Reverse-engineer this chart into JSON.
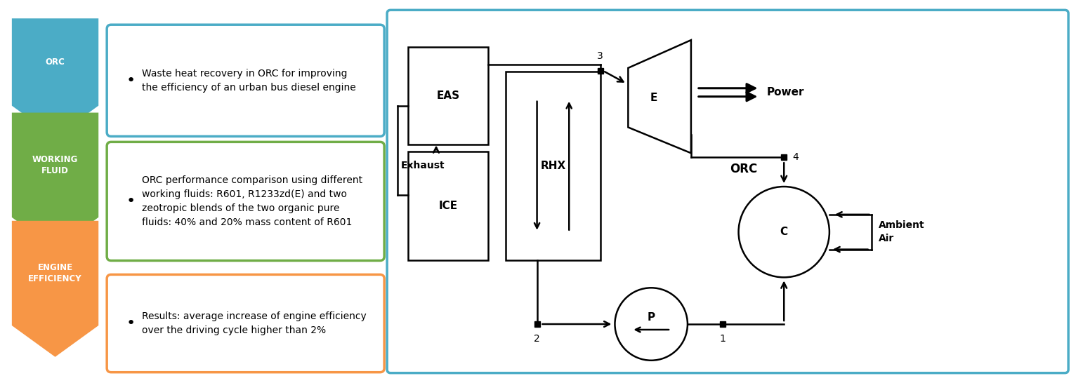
{
  "colors": {
    "orc": "#4BACC6",
    "working_fluid": "#70AD47",
    "engine": "#F79646",
    "diagram_border": "#4BACC6",
    "white": "#FFFFFF",
    "black": "#000000"
  },
  "bullet_texts": [
    "Waste heat recovery in ORC for improving\nthe efficiency of an urban bus diesel engine",
    "ORC performance comparison using different\nworking fluids: R601, R1233zd(E) and two\nzeotropic blends of the two organic pure\nfluids: 40% and 20% mass content of R601",
    "Results: average increase of engine efficiency\nover the driving cycle higher than 2%"
  ],
  "chevron_labels": [
    "ORC",
    "WORKING\nFLUID",
    "ENGINE\nEFFICIENCY"
  ],
  "background_color": "#FFFFFF"
}
